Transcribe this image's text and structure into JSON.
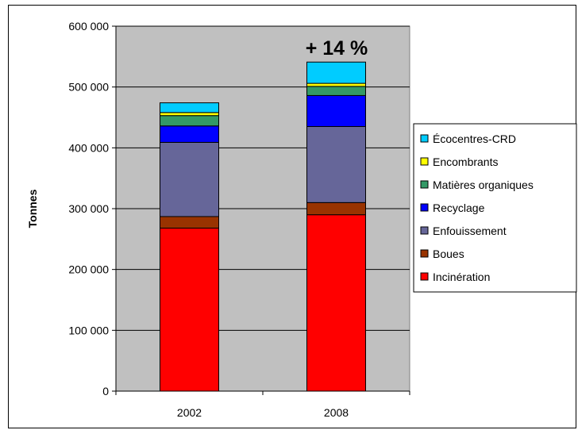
{
  "chart_data": {
    "type": "bar",
    "stacked": true,
    "categories": [
      "2002",
      "2008"
    ],
    "series": [
      {
        "name": "Incinération",
        "color": "#FF0000",
        "values": [
          268000,
          290000
        ]
      },
      {
        "name": "Boues",
        "color": "#993300",
        "values": [
          19000,
          20000
        ]
      },
      {
        "name": "Enfouissement",
        "color": "#666699",
        "values": [
          122000,
          125000
        ]
      },
      {
        "name": "Recyclage",
        "color": "#0000FF",
        "values": [
          27000,
          51000
        ]
      },
      {
        "name": "Matières organiques",
        "color": "#339966",
        "values": [
          17000,
          15000
        ]
      },
      {
        "name": "Encombrants",
        "color": "#FFFF00",
        "values": [
          5000,
          5000
        ]
      },
      {
        "name": "Écocentres-CRD",
        "color": "#00CCFF",
        "values": [
          16000,
          35000
        ]
      }
    ],
    "xlabel": "",
    "ylabel": "Tonnes",
    "ylim": [
      0,
      600000
    ],
    "yticks": [
      "0",
      "100 000",
      "200 000",
      "300 000",
      "400 000",
      "500 000",
      "600 000"
    ],
    "yticks_values": [
      0,
      100000,
      200000,
      300000,
      400000,
      500000,
      600000
    ],
    "annotations": [
      {
        "text": "+ 14 %",
        "category": "2008"
      }
    ],
    "plot_background": "#C0C0C0",
    "grid": true,
    "legend_position": "right",
    "legend_order": [
      "Écocentres-CRD",
      "Encombrants",
      "Matières organiques",
      "Recyclage",
      "Enfouissement",
      "Boues",
      "Incinération"
    ]
  }
}
